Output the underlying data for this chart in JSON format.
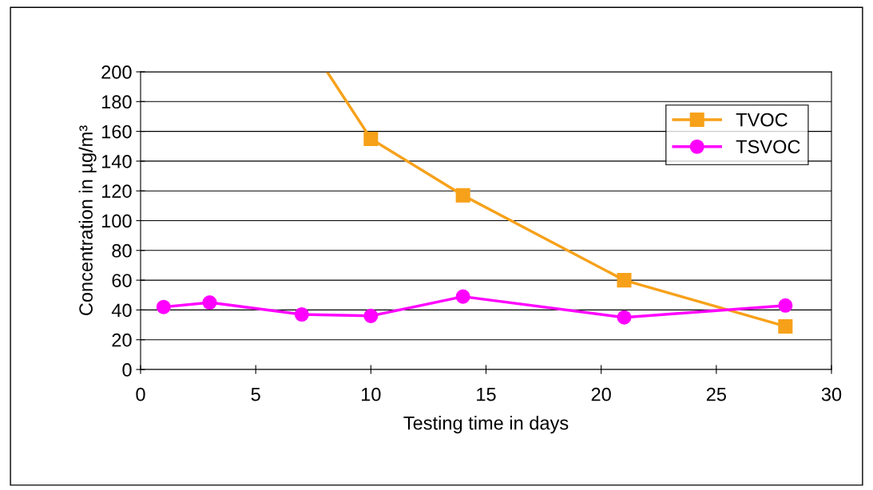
{
  "chart_data": {
    "type": "line",
    "xlabel": "Testing time in days",
    "ylabel": "Concentration in µg/m³",
    "xlim": [
      0,
      30
    ],
    "xticks": [
      0,
      5,
      10,
      15,
      20,
      25,
      30
    ],
    "ylim": [
      0,
      200
    ],
    "yticks": [
      0,
      20,
      40,
      60,
      80,
      100,
      120,
      140,
      160,
      180,
      200
    ],
    "grid": "y",
    "legend": "top right",
    "series": [
      {
        "name": "TVOC",
        "color": "#f7a11a",
        "marker": "square",
        "x": [
          8.1,
          10,
          14,
          21,
          28
        ],
        "values": [
          200,
          155,
          117,
          60,
          29
        ]
      },
      {
        "name": "TSVOC",
        "color": "#ff00ff",
        "marker": "circle",
        "x": [
          1,
          3,
          7,
          10,
          14,
          21,
          28
        ],
        "values": [
          42,
          45,
          37,
          36,
          49,
          35,
          43
        ]
      }
    ]
  }
}
